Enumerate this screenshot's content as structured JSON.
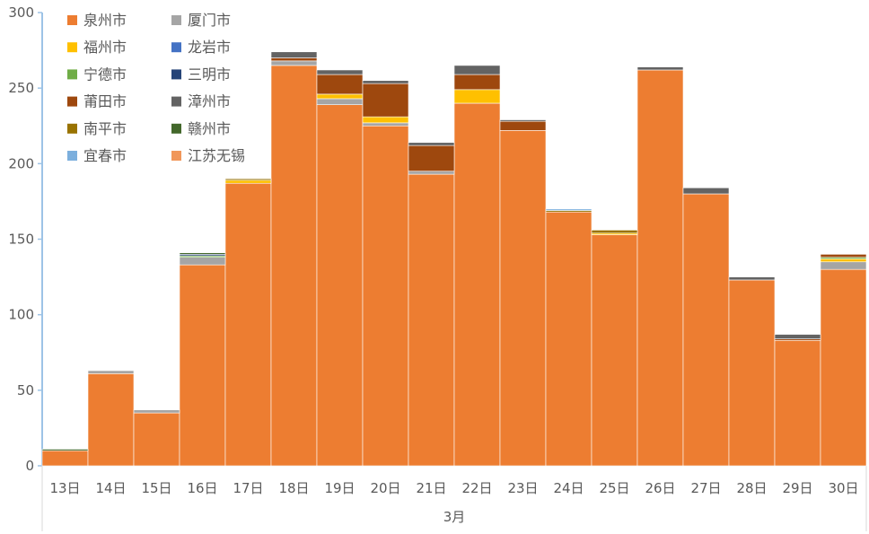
{
  "chart_data": {
    "type": "bar",
    "stacked": true,
    "ylim": [
      0,
      300
    ],
    "yticks": [
      0,
      50,
      100,
      150,
      200,
      250,
      300
    ],
    "categories": [
      "13日",
      "14日",
      "15日",
      "16日",
      "17日",
      "18日",
      "19日",
      "20日",
      "21日",
      "22日",
      "23日",
      "24日",
      "25日",
      "26日",
      "27日",
      "28日",
      "29日",
      "30日"
    ],
    "group_label": "3月",
    "legend_position": "top-left",
    "series": [
      {
        "name": "泉州市",
        "color": "#ED7D31",
        "values": [
          10,
          61,
          35,
          133,
          187,
          265,
          239,
          225,
          193,
          240,
          222,
          168,
          153,
          262,
          180,
          123,
          83,
          130
        ]
      },
      {
        "name": "厦门市",
        "color": "#A5A5A5",
        "values": [
          0,
          2,
          2,
          5,
          0,
          3,
          4,
          2,
          2,
          0,
          0,
          0,
          0,
          0,
          0,
          0,
          0,
          5
        ]
      },
      {
        "name": "福州市",
        "color": "#FFC000",
        "values": [
          0,
          0,
          0,
          0,
          2,
          0,
          3,
          4,
          0,
          9,
          0,
          0,
          1,
          0,
          0,
          0,
          0,
          2
        ]
      },
      {
        "name": "龙岩市",
        "color": "#4472C4",
        "values": [
          0,
          0,
          0,
          0,
          0,
          0,
          0,
          0,
          0,
          0,
          0,
          0,
          0,
          0,
          0,
          0,
          0,
          0
        ]
      },
      {
        "name": "宁德市",
        "color": "#70AD47",
        "values": [
          0,
          0,
          0,
          1,
          0,
          0,
          0,
          0,
          0,
          0,
          0,
          0,
          0,
          0,
          0,
          0,
          0,
          1
        ]
      },
      {
        "name": "三明市",
        "color": "#264478",
        "values": [
          0,
          0,
          0,
          1,
          0,
          0,
          0,
          0,
          0,
          0,
          0,
          0,
          0,
          0,
          0,
          0,
          0,
          0
        ]
      },
      {
        "name": "莆田市",
        "color": "#9E480E",
        "values": [
          0,
          0,
          0,
          0,
          0,
          2,
          13,
          22,
          17,
          10,
          6,
          0,
          0,
          0,
          0,
          0,
          1,
          2
        ]
      },
      {
        "name": "漳州市",
        "color": "#636363",
        "values": [
          0,
          0,
          0,
          0,
          0,
          4,
          3,
          2,
          2,
          6,
          1,
          0,
          0,
          2,
          4,
          2,
          3,
          0
        ]
      },
      {
        "name": "南平市",
        "color": "#997300",
        "values": [
          0,
          0,
          0,
          0,
          1,
          0,
          0,
          0,
          0,
          0,
          0,
          1,
          2,
          0,
          0,
          0,
          0,
          0
        ]
      },
      {
        "name": "赣州市",
        "color": "#43682B",
        "values": [
          1,
          0,
          0,
          1,
          0,
          0,
          0,
          0,
          0,
          0,
          0,
          0,
          0,
          0,
          0,
          0,
          0,
          0
        ]
      },
      {
        "name": "宜春市",
        "color": "#7CAFDD",
        "values": [
          0,
          0,
          0,
          0,
          0,
          0,
          0,
          0,
          0,
          0,
          0,
          1,
          0,
          0,
          0,
          0,
          0,
          0
        ]
      },
      {
        "name": "江苏无锡",
        "color": "#F1975A",
        "values": [
          0,
          0,
          0,
          0,
          0,
          0,
          0,
          0,
          0,
          0,
          0,
          0,
          0,
          0,
          0,
          0,
          0,
          0
        ]
      }
    ]
  }
}
